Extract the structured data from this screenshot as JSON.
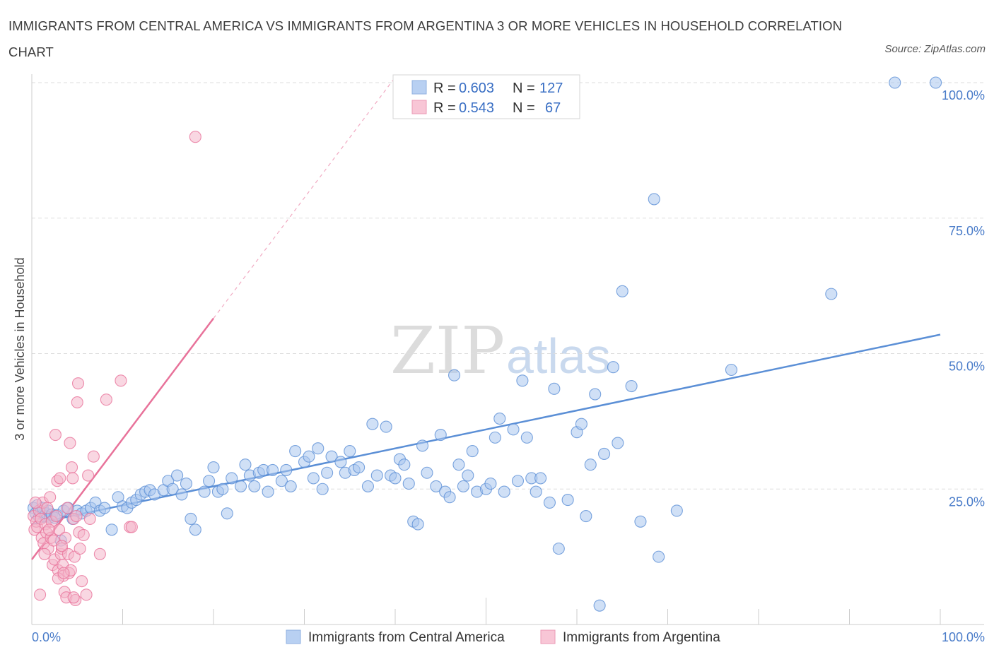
{
  "title": "IMMIGRANTS FROM CENTRAL AMERICA VS IMMIGRANTS FROM ARGENTINA 3 OR MORE VEHICLES IN HOUSEHOLD CORRELATION CHART",
  "source": "Source: ZipAtlas.com",
  "watermark": {
    "zip": "ZIP",
    "atlas": "atlas"
  },
  "colors": {
    "blue": "#5b8fd6",
    "blue_fill": "#a9c6ee",
    "pink": "#e8729a",
    "pink_fill": "#f4b6ca",
    "tick_text": "#4a7cc9"
  },
  "legend": {
    "r_label": "R = ",
    "n_label": "N = ",
    "rows": [
      {
        "r": "0.603",
        "n": "127"
      },
      {
        "r": "0.543",
        "n": "67"
      }
    ]
  },
  "chart_data": {
    "type": "scatter",
    "xlabel": "",
    "ylabel": "3 or more Vehicles in Household",
    "xlim": [
      0,
      100
    ],
    "ylim": [
      0,
      100
    ],
    "x_tick_labels": [
      "0.0%",
      "100.0%"
    ],
    "y_tick_labels": [
      "25.0%",
      "50.0%",
      "75.0%",
      "100.0%"
    ],
    "y_ticks": [
      25,
      50,
      75,
      100
    ],
    "grid": true,
    "legend_position": "top-center",
    "series": [
      {
        "name": "Immigrants from Central America",
        "color": "#5b8fd6",
        "trend": {
          "x": [
            0,
            100
          ],
          "y": [
            18.5,
            53.5
          ]
        },
        "points": [
          [
            0.2,
            21.5
          ],
          [
            0.4,
            20.5
          ],
          [
            0.6,
            22
          ],
          [
            0.8,
            19.8
          ],
          [
            1.0,
            20.8
          ],
          [
            1.2,
            21.5
          ],
          [
            1.4,
            20
          ],
          [
            1.6,
            20.5
          ],
          [
            1.8,
            21
          ],
          [
            2.0,
            19.8
          ],
          [
            2.2,
            20.3
          ],
          [
            2.5,
            19.7
          ],
          [
            2.8,
            20.2
          ],
          [
            3.2,
            15.5
          ],
          [
            3.5,
            21
          ],
          [
            4.0,
            21.5
          ],
          [
            4.5,
            19.5
          ],
          [
            5.0,
            21
          ],
          [
            5.5,
            20.5
          ],
          [
            6.0,
            21
          ],
          [
            6.5,
            21.5
          ],
          [
            7.0,
            22.5
          ],
          [
            7.5,
            21
          ],
          [
            8.0,
            21.5
          ],
          [
            8.8,
            17.5
          ],
          [
            9.5,
            23.5
          ],
          [
            10,
            21.8
          ],
          [
            10.5,
            21.5
          ],
          [
            11,
            22.5
          ],
          [
            11.5,
            23
          ],
          [
            12,
            24
          ],
          [
            12.5,
            24.5
          ],
          [
            13,
            24.8
          ],
          [
            13.5,
            24
          ],
          [
            14.5,
            24.8
          ],
          [
            15,
            26.5
          ],
          [
            15.5,
            25
          ],
          [
            16,
            27.5
          ],
          [
            16.5,
            24
          ],
          [
            17,
            26
          ],
          [
            17.5,
            19.5
          ],
          [
            18,
            17.5
          ],
          [
            19,
            24.5
          ],
          [
            19.5,
            26.5
          ],
          [
            20,
            29
          ],
          [
            20.5,
            24.5
          ],
          [
            21,
            25
          ],
          [
            21.5,
            20.5
          ],
          [
            22,
            27
          ],
          [
            23,
            25.5
          ],
          [
            23.5,
            29.5
          ],
          [
            24,
            27.5
          ],
          [
            24.5,
            25.5
          ],
          [
            25,
            28
          ],
          [
            25.5,
            28.5
          ],
          [
            26,
            24.5
          ],
          [
            26.5,
            28.5
          ],
          [
            27.5,
            26.5
          ],
          [
            28,
            28.5
          ],
          [
            28.5,
            25.5
          ],
          [
            29,
            32
          ],
          [
            30,
            30
          ],
          [
            30.5,
            31
          ],
          [
            31,
            27
          ],
          [
            31.5,
            32.5
          ],
          [
            32,
            25
          ],
          [
            32.5,
            28
          ],
          [
            33,
            31
          ],
          [
            34,
            30
          ],
          [
            34.5,
            28
          ],
          [
            35,
            32
          ],
          [
            35.5,
            28.5
          ],
          [
            36,
            29
          ],
          [
            37,
            25.5
          ],
          [
            37.5,
            37
          ],
          [
            38,
            27.5
          ],
          [
            39,
            36.5
          ],
          [
            39.5,
            27.5
          ],
          [
            40,
            27
          ],
          [
            40.5,
            30.5
          ],
          [
            41,
            29.5
          ],
          [
            41.5,
            26
          ],
          [
            42,
            19
          ],
          [
            42.5,
            18.5
          ],
          [
            43,
            33
          ],
          [
            43.5,
            28
          ],
          [
            44.5,
            25.5
          ],
          [
            45,
            35
          ],
          [
            45.5,
            24.5
          ],
          [
            46,
            23.5
          ],
          [
            46.5,
            46
          ],
          [
            47,
            29.5
          ],
          [
            47.5,
            25.5
          ],
          [
            48,
            27.5
          ],
          [
            48.5,
            32
          ],
          [
            49,
            24.5
          ],
          [
            50,
            25
          ],
          [
            50.5,
            26
          ],
          [
            51,
            34.5
          ],
          [
            51.5,
            38
          ],
          [
            52,
            24.5
          ],
          [
            53,
            36
          ],
          [
            53.5,
            26.5
          ],
          [
            54,
            45
          ],
          [
            54.5,
            34.5
          ],
          [
            55,
            27
          ],
          [
            55.5,
            24.5
          ],
          [
            56,
            27
          ],
          [
            57,
            22.5
          ],
          [
            57.5,
            43.5
          ],
          [
            58,
            14
          ],
          [
            59,
            23
          ],
          [
            60,
            35.5
          ],
          [
            60.5,
            37
          ],
          [
            61,
            20
          ],
          [
            61.5,
            29.5
          ],
          [
            62,
            42.5
          ],
          [
            62.5,
            3.5
          ],
          [
            63,
            31.5
          ],
          [
            64,
            47.5
          ],
          [
            64.5,
            33.5
          ],
          [
            65,
            61.5
          ],
          [
            66,
            44
          ],
          [
            67,
            19
          ],
          [
            68.5,
            78.5
          ],
          [
            69,
            12.5
          ],
          [
            71,
            21
          ],
          [
            77,
            47
          ],
          [
            88,
            61
          ],
          [
            95,
            100
          ],
          [
            99.5,
            100
          ]
        ]
      },
      {
        "name": "Immigrants from Argentina",
        "color": "#e8729a",
        "trend": {
          "x": [
            0,
            20
          ],
          "y": [
            12,
            56.5
          ]
        },
        "trend_dashed": {
          "x": [
            20,
            40
          ],
          "y": [
            56.5,
            101
          ]
        },
        "points": [
          [
            0.2,
            20
          ],
          [
            0.3,
            17.5
          ],
          [
            0.5,
            19
          ],
          [
            0.6,
            18
          ],
          [
            0.8,
            21
          ],
          [
            1.0,
            19.5
          ],
          [
            1.1,
            16
          ],
          [
            1.2,
            22.5
          ],
          [
            1.3,
            15
          ],
          [
            1.5,
            18.5
          ],
          [
            1.6,
            17
          ],
          [
            1.7,
            21.5
          ],
          [
            1.8,
            14
          ],
          [
            2.0,
            23.5
          ],
          [
            2.1,
            16
          ],
          [
            2.2,
            19
          ],
          [
            2.3,
            11
          ],
          [
            2.4,
            15.5
          ],
          [
            2.5,
            12
          ],
          [
            2.6,
            35
          ],
          [
            2.7,
            20
          ],
          [
            2.8,
            26.5
          ],
          [
            2.9,
            10
          ],
          [
            3.0,
            17.5
          ],
          [
            3.1,
            27
          ],
          [
            3.2,
            13
          ],
          [
            3.3,
            14
          ],
          [
            3.4,
            11
          ],
          [
            3.5,
            9
          ],
          [
            3.6,
            6
          ],
          [
            3.7,
            16
          ],
          [
            3.8,
            5
          ],
          [
            3.9,
            21.5
          ],
          [
            4.0,
            13
          ],
          [
            4.1,
            9.5
          ],
          [
            4.2,
            33.5
          ],
          [
            4.3,
            10
          ],
          [
            4.4,
            29
          ],
          [
            4.5,
            27
          ],
          [
            4.6,
            19.5
          ],
          [
            4.7,
            12.5
          ],
          [
            4.8,
            4.5
          ],
          [
            4.9,
            20
          ],
          [
            5.0,
            41
          ],
          [
            5.1,
            44.5
          ],
          [
            5.2,
            17
          ],
          [
            5.3,
            14
          ],
          [
            5.5,
            8
          ],
          [
            5.7,
            16.5
          ],
          [
            6.0,
            5.5
          ],
          [
            6.2,
            27.5
          ],
          [
            6.4,
            19.5
          ],
          [
            6.8,
            31
          ],
          [
            7.5,
            13
          ],
          [
            8.2,
            41.5
          ],
          [
            9.8,
            45
          ],
          [
            10.8,
            18
          ],
          [
            11,
            18
          ],
          [
            18,
            90
          ],
          [
            0.9,
            5.5
          ],
          [
            1.4,
            13
          ],
          [
            2.9,
            8.5
          ],
          [
            3.3,
            14.5
          ],
          [
            0.4,
            22.5
          ],
          [
            1.9,
            17.5
          ],
          [
            3.5,
            9.5
          ],
          [
            4.6,
            5
          ]
        ]
      }
    ]
  },
  "bottom_legend": [
    "Immigrants from Central America",
    "Immigrants from Argentina"
  ]
}
